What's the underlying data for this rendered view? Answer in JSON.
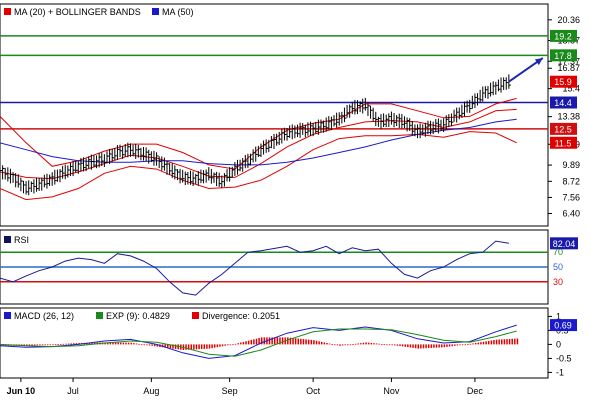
{
  "legend_top": [
    {
      "color": "#e00000",
      "label": "MA (20) + BOLLINGER BANDS"
    },
    {
      "color": "#1a1acc",
      "label": "MA (50)"
    }
  ],
  "legend_rsi": [
    {
      "color": "#101060",
      "label": "RSI"
    }
  ],
  "legend_macd": [
    {
      "color": "#1a1acc",
      "label": "MACD (26, 12)"
    },
    {
      "color": "#1a8a1a",
      "label": "EXP (9): 0.4829"
    },
    {
      "color": "#e00000",
      "label": "Divergence: 0.2051"
    }
  ],
  "x_labels": [
    {
      "label": "Jun 10",
      "x": 8,
      "bold": true
    },
    {
      "label": "Jul",
      "x": 28
    },
    {
      "label": "Aug",
      "x": 58
    },
    {
      "label": "Sep",
      "x": 88
    },
    {
      "label": "Oct",
      "x": 120
    },
    {
      "label": "Nov",
      "x": 150
    },
    {
      "label": "Dec",
      "x": 182
    }
  ],
  "chart_data": [
    {
      "type": "line",
      "panel": "price",
      "xlim": [
        0,
        210
      ],
      "ylim": [
        5.5,
        21.5
      ],
      "y_ticks": [
        "20.36",
        "18.87",
        "17.37",
        "16.87",
        "15.4",
        "13.38",
        "11.39",
        "9.89",
        "8.72",
        "7.56",
        "6.40"
      ],
      "y_tick_values": [
        20.36,
        18.87,
        17.37,
        16.87,
        15.4,
        13.38,
        11.39,
        9.89,
        8.72,
        7.56,
        6.4
      ],
      "hlines": [
        {
          "value": 19.2,
          "label": "19.2",
          "color": "#1a8a1a"
        },
        {
          "value": 17.8,
          "label": "17.8",
          "color": "#1a8a1a"
        },
        {
          "value": 14.4,
          "label": "14.4",
          "color": "#1a1aaa"
        },
        {
          "value": 12.5,
          "label": "12.5",
          "color": "#d01010"
        }
      ],
      "markers": [
        {
          "value": 15.9,
          "label": "15.9",
          "color": "#e00000"
        },
        {
          "value": 11.5,
          "label": "11.5",
          "color": "#e00000"
        }
      ],
      "arrow": {
        "from": [
          195,
          15.9
        ],
        "to": [
          208,
          17.6
        ],
        "color": "#1a2ab0"
      },
      "series": [
        {
          "key": "price",
          "color": "#000000",
          "x": [
            0,
            5,
            10,
            15,
            20,
            25,
            30,
            35,
            40,
            45,
            50,
            55,
            60,
            65,
            70,
            75,
            80,
            85,
            90,
            95,
            100,
            105,
            110,
            115,
            120,
            125,
            130,
            135,
            140,
            145,
            150,
            155,
            160,
            165,
            170,
            175,
            180,
            185,
            190,
            195
          ],
          "values": [
            9.5,
            9.0,
            8.2,
            8.5,
            8.9,
            9.4,
            9.8,
            10.1,
            10.3,
            10.8,
            11.0,
            10.7,
            10.3,
            9.6,
            9.0,
            8.9,
            9.2,
            8.7,
            9.6,
            10.2,
            11.0,
            11.6,
            12.2,
            12.4,
            12.5,
            12.8,
            13.2,
            14.0,
            14.2,
            13.0,
            13.2,
            13.0,
            12.3,
            12.6,
            12.8,
            13.5,
            14.2,
            15.0,
            15.5,
            15.9
          ]
        },
        {
          "key": "ma20",
          "color": "#e00000",
          "x": [
            0,
            10,
            20,
            30,
            40,
            50,
            60,
            70,
            80,
            90,
            100,
            110,
            120,
            130,
            140,
            150,
            160,
            170,
            180,
            190,
            198
          ],
          "values": [
            9.4,
            9.0,
            8.9,
            9.4,
            10.0,
            10.6,
            10.4,
            9.8,
            9.1,
            9.0,
            10.0,
            11.2,
            12.1,
            12.6,
            13.0,
            13.1,
            13.0,
            12.6,
            13.0,
            13.8,
            13.9
          ]
        },
        {
          "key": "bb_upper",
          "color": "#e00000",
          "x": [
            0,
            10,
            20,
            30,
            40,
            50,
            60,
            70,
            80,
            90,
            100,
            110,
            120,
            130,
            140,
            150,
            160,
            170,
            180,
            190,
            198
          ],
          "values": [
            13.4,
            11.5,
            9.8,
            10.2,
            10.9,
            11.4,
            11.4,
            10.8,
            9.9,
            9.6,
            11.2,
            12.4,
            12.9,
            13.2,
            14.3,
            14.3,
            13.8,
            13.3,
            13.4,
            14.3,
            14.7
          ]
        },
        {
          "key": "bb_lower",
          "color": "#e00000",
          "x": [
            0,
            10,
            20,
            30,
            40,
            50,
            60,
            70,
            80,
            90,
            100,
            110,
            120,
            130,
            140,
            150,
            160,
            170,
            180,
            190,
            198
          ],
          "values": [
            8.2,
            7.4,
            7.6,
            8.2,
            9.3,
            9.8,
            9.6,
            8.8,
            8.2,
            8.3,
            8.8,
            9.8,
            11.0,
            11.8,
            12.0,
            12.0,
            12.1,
            11.9,
            12.3,
            12.2,
            11.5
          ]
        },
        {
          "key": "ma50",
          "color": "#1a1acc",
          "x": [
            0,
            10,
            20,
            30,
            40,
            50,
            60,
            70,
            80,
            90,
            100,
            110,
            120,
            130,
            140,
            150,
            160,
            170,
            180,
            190,
            198
          ],
          "values": [
            11.5,
            11.0,
            10.5,
            10.2,
            10.1,
            10.1,
            10.2,
            10.2,
            10.0,
            9.9,
            9.9,
            10.1,
            10.4,
            10.8,
            11.2,
            11.7,
            12.1,
            12.4,
            12.6,
            13.0,
            13.2
          ]
        }
      ]
    },
    {
      "type": "line",
      "panel": "rsi",
      "xlim": [
        0,
        210
      ],
      "ylim": [
        0,
        100
      ],
      "y_ticks": [
        "70",
        "50",
        "30"
      ],
      "y_tick_values": [
        70,
        50,
        30
      ],
      "current_value": "82.04",
      "hlines": [
        {
          "value": 70,
          "color": "#1a8a1a"
        },
        {
          "value": 50,
          "color": "#2a6ac8"
        },
        {
          "value": 30,
          "color": "#d01010"
        }
      ],
      "series": [
        {
          "key": "rsi",
          "color": "#1a1a99",
          "x": [
            0,
            5,
            10,
            15,
            20,
            25,
            30,
            35,
            40,
            45,
            50,
            55,
            60,
            65,
            70,
            75,
            80,
            85,
            90,
            95,
            100,
            105,
            110,
            115,
            120,
            125,
            130,
            135,
            140,
            145,
            150,
            155,
            160,
            165,
            170,
            175,
            180,
            185,
            190,
            195
          ],
          "values": [
            35,
            30,
            38,
            45,
            50,
            58,
            62,
            60,
            55,
            68,
            65,
            58,
            48,
            30,
            15,
            12,
            28,
            40,
            55,
            70,
            72,
            75,
            78,
            70,
            72,
            78,
            68,
            76,
            72,
            74,
            55,
            40,
            35,
            45,
            50,
            60,
            68,
            70,
            85,
            82
          ]
        }
      ]
    },
    {
      "type": "line",
      "panel": "macd",
      "xlim": [
        0,
        210
      ],
      "ylim": [
        -1.2,
        1.3
      ],
      "y_ticks": [
        "1",
        "0.5",
        "0",
        "-0.5",
        "-1"
      ],
      "y_tick_values": [
        1,
        0.5,
        0,
        -0.5,
        -1
      ],
      "current_value": "0.69",
      "series": [
        {
          "key": "macd",
          "color": "#1a1acc",
          "name": "MACD (26, 12)",
          "x": [
            0,
            10,
            20,
            30,
            40,
            50,
            60,
            70,
            80,
            90,
            100,
            110,
            120,
            130,
            140,
            150,
            160,
            170,
            180,
            190,
            198
          ],
          "values": [
            -0.05,
            -0.1,
            -0.08,
            0.0,
            0.12,
            0.18,
            0.0,
            -0.3,
            -0.5,
            -0.4,
            0.05,
            0.4,
            0.6,
            0.5,
            0.62,
            0.5,
            0.2,
            0.05,
            0.1,
            0.45,
            0.69
          ]
        },
        {
          "key": "signal",
          "color": "#1a8a1a",
          "name": "EXP (9): 0.4829",
          "x": [
            0,
            10,
            20,
            30,
            40,
            50,
            60,
            70,
            80,
            90,
            100,
            110,
            120,
            130,
            140,
            150,
            160,
            170,
            180,
            190,
            198
          ],
          "values": [
            0.0,
            -0.05,
            -0.08,
            -0.05,
            0.05,
            0.12,
            0.08,
            -0.1,
            -0.35,
            -0.42,
            -0.2,
            0.15,
            0.45,
            0.55,
            0.55,
            0.52,
            0.35,
            0.15,
            0.08,
            0.28,
            0.48
          ]
        }
      ],
      "histogram": {
        "color": "#e00000",
        "name": "Divergence: 0.2051",
        "x": [
          0,
          10,
          20,
          30,
          40,
          50,
          60,
          70,
          80,
          90,
          100,
          110,
          120,
          130,
          140,
          150,
          160,
          170,
          180,
          190,
          198
        ],
        "values": [
          -0.05,
          -0.05,
          0.0,
          0.05,
          0.07,
          0.06,
          -0.08,
          -0.2,
          -0.15,
          0.02,
          0.25,
          0.25,
          0.15,
          -0.05,
          0.07,
          -0.02,
          -0.15,
          -0.1,
          0.02,
          0.17,
          0.21
        ]
      }
    }
  ]
}
